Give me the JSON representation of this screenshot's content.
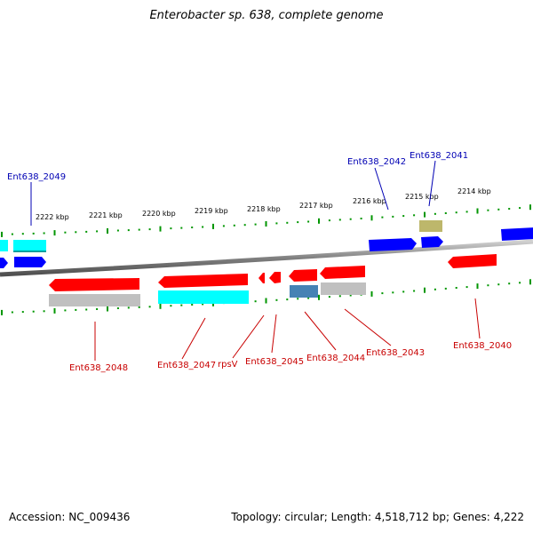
{
  "title": "Enterobacter sp. 638, complete genome",
  "accession": "Accession: NC_009436",
  "topology": "Topology: circular; Length: 4,518,712 bp; Genes: 4,222",
  "kbp_labels": [
    "2222 kbp",
    "2221 kbp",
    "2220 kbp",
    "2219 kbp",
    "2218 kbp",
    "2217 kbp",
    "2216 kbp",
    "2215 kbp",
    "2214 kbp"
  ],
  "upper_gene_labels": [
    "Ent638_2049",
    "Ent638_2042",
    "Ent638_2041"
  ],
  "lower_gene_labels": [
    "Ent638_2048",
    "Ent638_2047",
    "rpsV",
    "Ent638_2045",
    "Ent638_2044",
    "Ent638_2043",
    "Ent638_2040"
  ],
  "colors": {
    "forward_gene": "#0000ff",
    "reverse_gene": "#ff0000",
    "cds_cyan": "#00ffff",
    "cds_gray": "#c0c0c0",
    "cds_steel": "#4682b4",
    "cds_khaki": "#bdb76b",
    "ticks": "#009600",
    "axis": "#808080",
    "label_upper": "#0000b4",
    "label_lower": "#c80000"
  }
}
